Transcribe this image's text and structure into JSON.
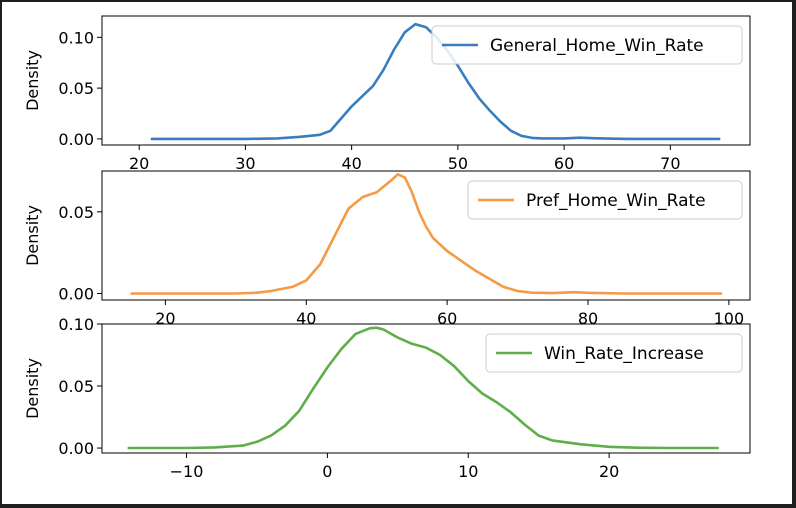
{
  "chart_data": [
    {
      "type": "line",
      "title": "",
      "xlabel": "",
      "ylabel": "Density",
      "xlim": [
        16.5,
        77.5
      ],
      "ylim": [
        -0.006,
        0.121
      ],
      "xticks": [
        20,
        30,
        40,
        50,
        60,
        70
      ],
      "yticks": [
        0.0,
        0.05,
        0.1
      ],
      "ytick_labels": [
        "0.00",
        "0.05",
        "0.10"
      ],
      "grid": false,
      "legend_position": "top-right",
      "color": "#3a7dbf",
      "series": [
        {
          "name": "General_Home_Win_Rate",
          "x": [
            21.2,
            25,
            30,
            33,
            35,
            36,
            37,
            38,
            39,
            40,
            41,
            42,
            43,
            44,
            45,
            46,
            47,
            48,
            49,
            50,
            51,
            52,
            53,
            54,
            55,
            56,
            57,
            58,
            60,
            61.5,
            63,
            66,
            70,
            74.6
          ],
          "values": [
            0.0,
            0.0,
            0.0,
            0.0005,
            0.002,
            0.003,
            0.004,
            0.008,
            0.02,
            0.032,
            0.042,
            0.052,
            0.068,
            0.088,
            0.105,
            0.113,
            0.11,
            0.1,
            0.087,
            0.072,
            0.055,
            0.04,
            0.028,
            0.017,
            0.008,
            0.003,
            0.001,
            0.0005,
            0.0005,
            0.0012,
            0.0006,
            0.0,
            0.0,
            0.0
          ]
        }
      ]
    },
    {
      "type": "line",
      "title": "",
      "xlabel": "",
      "ylabel": "Density",
      "xlim": [
        11,
        103
      ],
      "ylim": [
        -0.004,
        0.075
      ],
      "xticks": [
        20,
        40,
        60,
        80,
        100
      ],
      "yticks": [
        0.0,
        0.05
      ],
      "ytick_labels": [
        "0.00",
        "0.05"
      ],
      "grid": false,
      "legend_position": "top-right",
      "color": "#f59a46",
      "series": [
        {
          "name": "Pref_Home_Win_Rate",
          "x": [
            15.2,
            20,
            25,
            30,
            33,
            35,
            38,
            40,
            42,
            44,
            46,
            48,
            50,
            52,
            53,
            54,
            55,
            56,
            57,
            58,
            60,
            62,
            64,
            66,
            68,
            70,
            72,
            75,
            78,
            80,
            85,
            90,
            95,
            98.9
          ],
          "values": [
            0.0,
            0.0,
            0.0,
            0.0,
            0.0005,
            0.0015,
            0.004,
            0.008,
            0.018,
            0.035,
            0.052,
            0.059,
            0.062,
            0.069,
            0.073,
            0.071,
            0.062,
            0.05,
            0.041,
            0.034,
            0.026,
            0.02,
            0.014,
            0.009,
            0.004,
            0.0015,
            0.0005,
            0.0002,
            0.0008,
            0.0004,
            0.0,
            0.0,
            0.0,
            0.0
          ]
        }
      ]
    },
    {
      "type": "line",
      "title": "",
      "xlabel": "",
      "ylabel": "Density",
      "xlim": [
        -16,
        30
      ],
      "ylim": [
        -0.004,
        0.1
      ],
      "xticks": [
        -10,
        0,
        10,
        20
      ],
      "yticks": [
        0.0,
        0.05,
        0.1
      ],
      "ytick_labels": [
        "0.00",
        "0.05",
        "0.10"
      ],
      "xtick_labels": [
        "−10",
        "0",
        "10",
        "20"
      ],
      "grid": false,
      "legend_position": "top-right",
      "color": "#5fae4a",
      "series": [
        {
          "name": "Win_Rate_Increase",
          "x": [
            -14.1,
            -12,
            -10,
            -8,
            -6,
            -5,
            -4,
            -3,
            -2,
            -1,
            0,
            1,
            2,
            3,
            3.5,
            4,
            5,
            6,
            7,
            8,
            9,
            10,
            11,
            12,
            13,
            14,
            15,
            16,
            18,
            20,
            22,
            24,
            26,
            27.7
          ],
          "values": [
            0.0,
            0.0,
            0.0,
            0.0005,
            0.002,
            0.005,
            0.01,
            0.018,
            0.03,
            0.048,
            0.065,
            0.08,
            0.092,
            0.0965,
            0.097,
            0.0955,
            0.089,
            0.084,
            0.081,
            0.075,
            0.066,
            0.054,
            0.044,
            0.037,
            0.029,
            0.019,
            0.01,
            0.006,
            0.003,
            0.001,
            0.0003,
            0.0,
            0.0,
            0.0
          ]
        }
      ]
    }
  ]
}
